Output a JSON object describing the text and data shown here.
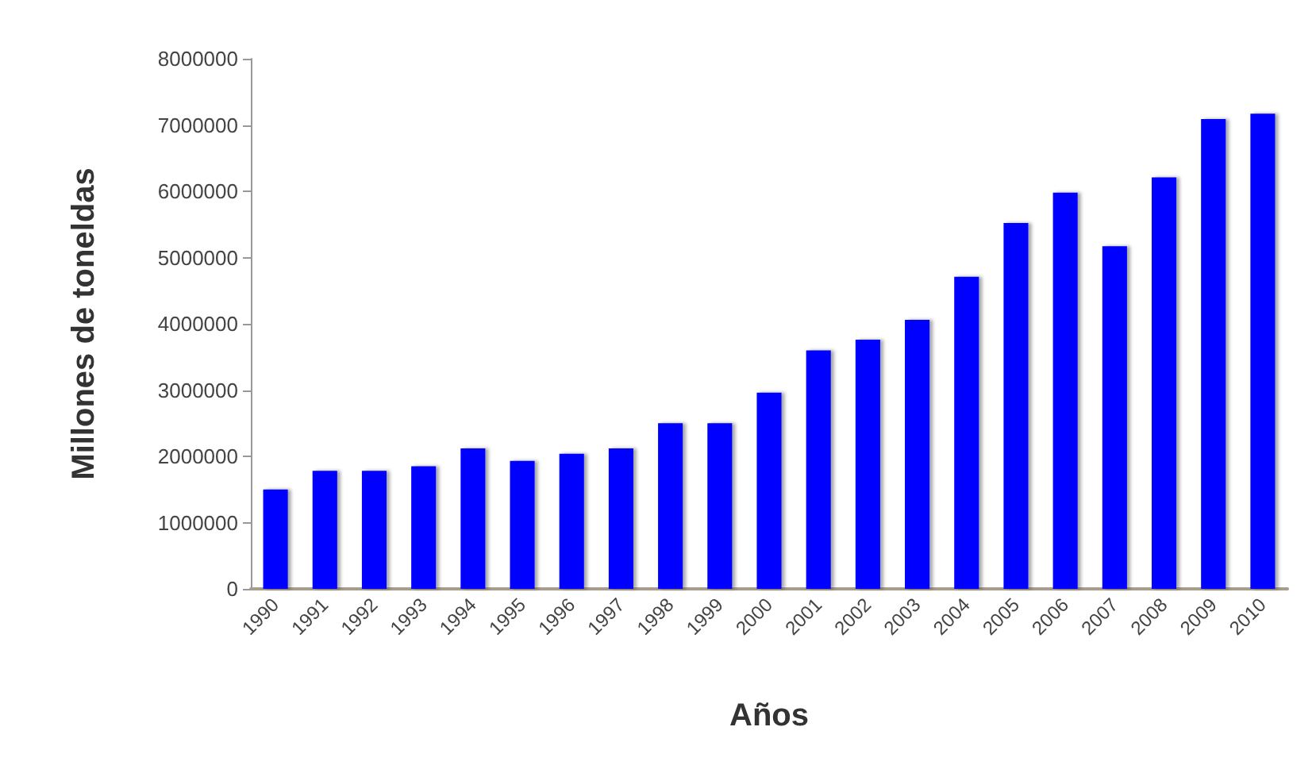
{
  "chart_data": {
    "type": "bar",
    "xlabel": "Años",
    "ylabel": "Millones de toneldas",
    "categories": [
      "1990",
      "1991",
      "1992",
      "1993",
      "1994",
      "1995",
      "1996",
      "1997",
      "1998",
      "1999",
      "2000",
      "2001",
      "2002",
      "2003",
      "2004",
      "2005",
      "2006",
      "2007",
      "2008",
      "2009",
      "2010"
    ],
    "values": [
      1500000,
      1780000,
      1780000,
      1850000,
      2120000,
      1930000,
      2040000,
      2120000,
      2500000,
      2500000,
      2960000,
      3600000,
      3760000,
      4060000,
      4710000,
      5520000,
      5980000,
      5170000,
      6210000,
      7090000,
      7170000
    ],
    "color": "#0000ff",
    "ylim": [
      0,
      8000000
    ],
    "yticks": [
      0,
      1000000,
      2000000,
      3000000,
      4000000,
      5000000,
      6000000,
      7000000,
      8000000
    ],
    "grid": false
  }
}
